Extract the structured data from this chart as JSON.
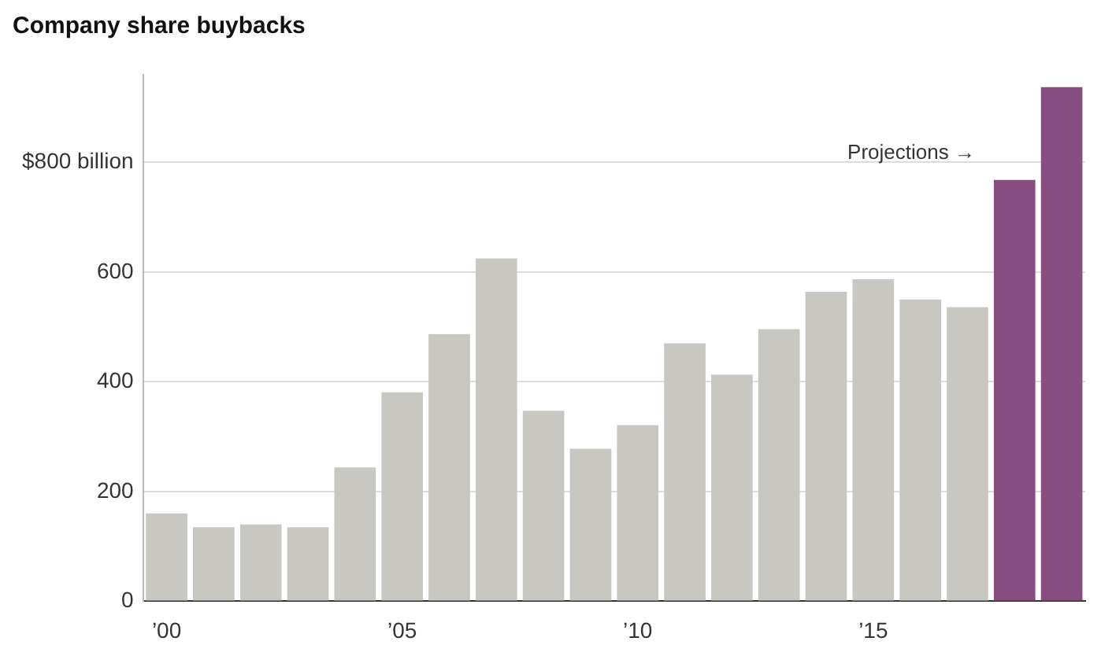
{
  "chart_data": {
    "type": "bar",
    "title": "Company share buybacks",
    "categories": [
      "’00",
      null,
      null,
      null,
      null,
      "’05",
      null,
      null,
      null,
      null,
      "’10",
      null,
      null,
      null,
      null,
      "’15",
      null,
      null,
      null,
      null
    ],
    "values": [
      160,
      135,
      140,
      135,
      244,
      381,
      487,
      625,
      347,
      278,
      321,
      470,
      413,
      496,
      564,
      587,
      550,
      536,
      768,
      937
    ],
    "colors": [
      "#c8c7c2",
      "#c8c7c2",
      "#c8c7c2",
      "#c8c7c2",
      "#c8c7c2",
      "#c8c7c2",
      "#c8c7c2",
      "#c8c7c2",
      "#c8c7c2",
      "#c8c7c2",
      "#c8c7c2",
      "#c8c7c2",
      "#c8c7c2",
      "#c8c7c2",
      "#c8c7c2",
      "#c8c7c2",
      "#c8c7c2",
      "#c8c7c2",
      "#874d80",
      "#874d80"
    ],
    "ylim": [
      0,
      960
    ],
    "yticks": [
      0,
      200,
      400,
      600,
      {
        "value": 800,
        "label": "$800 billion"
      }
    ],
    "grid": "y",
    "annotations": [
      "Projections →"
    ]
  }
}
